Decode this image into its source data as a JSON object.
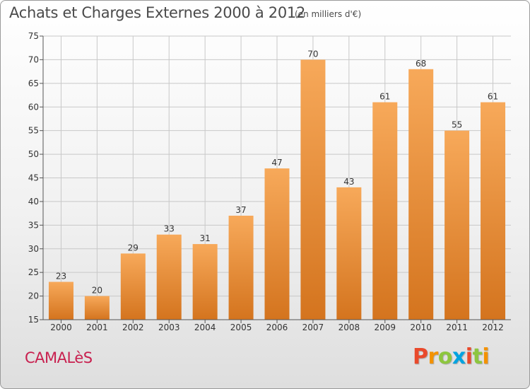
{
  "header": {
    "title": "Achats et Charges Externes 2000 à 2012",
    "unit": "(en milliers d'€)"
  },
  "footer": {
    "city": "CAMALèS",
    "logo": "Proxiti"
  },
  "chart_data": {
    "type": "bar",
    "title": "Achats et Charges Externes 2000 à 2012",
    "subtitle": "(en milliers d'€)",
    "xlabel": "",
    "ylabel": "",
    "categories": [
      "2000",
      "2001",
      "2002",
      "2003",
      "2004",
      "2005",
      "2006",
      "2007",
      "2008",
      "2009",
      "2010",
      "2011",
      "2012"
    ],
    "values": [
      23,
      20,
      29,
      33,
      31,
      37,
      47,
      70,
      43,
      61,
      68,
      55,
      61
    ],
    "ylim": [
      15,
      75
    ],
    "yticks": [
      15,
      20,
      25,
      30,
      35,
      40,
      45,
      50,
      55,
      60,
      65,
      70,
      75
    ],
    "grid": true,
    "legend": "none",
    "colors": {
      "bar_light": "#f7a95a",
      "bar_dark": "#d4741e",
      "grid": "#c8c8c8",
      "axis": "#555555"
    }
  },
  "colors": {
    "city": "#c8204f",
    "logo_letters": [
      "#e94a2c",
      "#f39200",
      "#8dc63f",
      "#00a3e0",
      "#e94a2c",
      "#8dc63f",
      "#f39200"
    ]
  }
}
